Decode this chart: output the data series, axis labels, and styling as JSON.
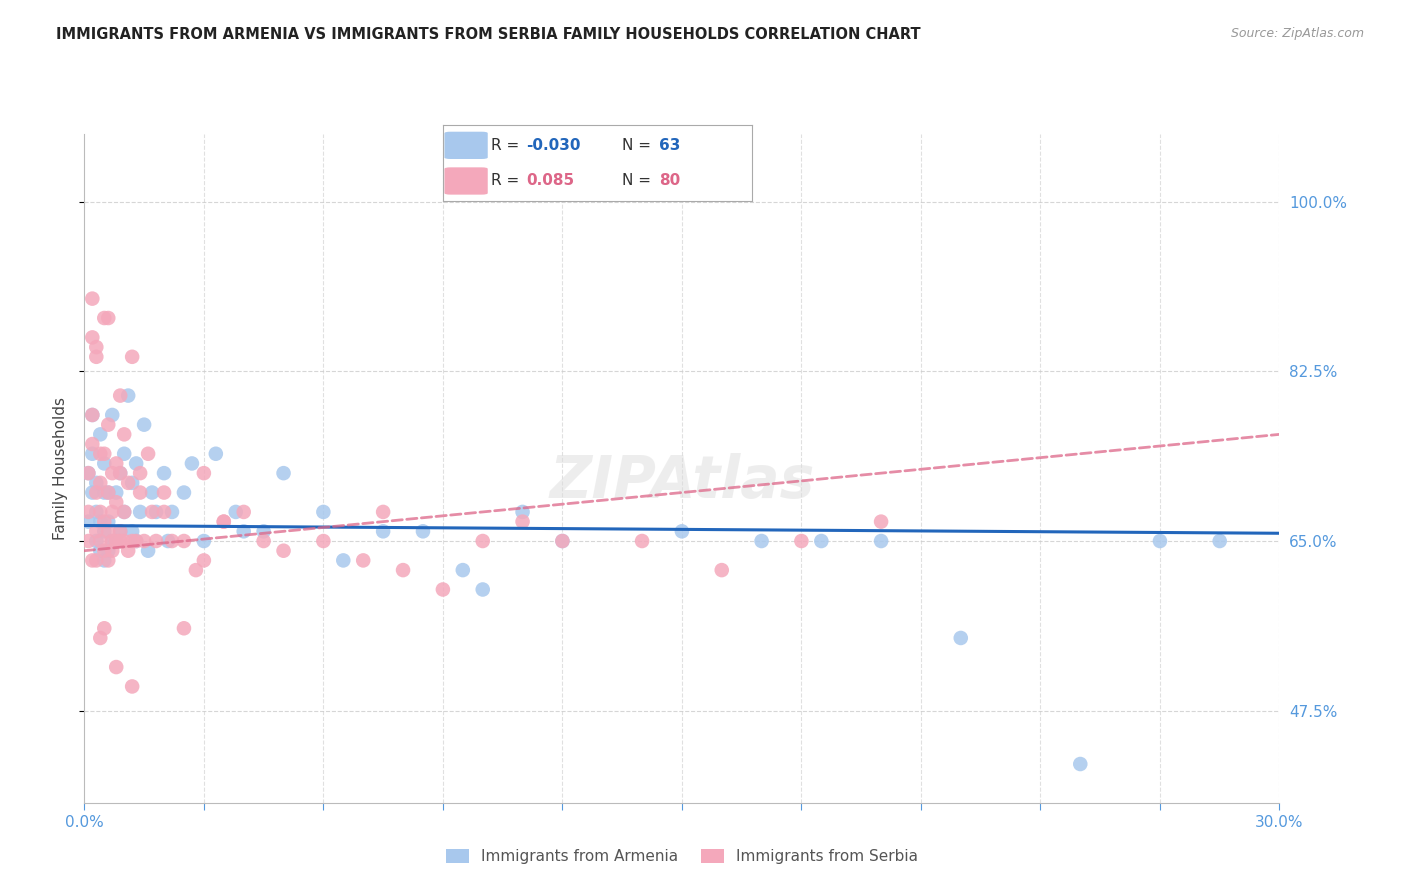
{
  "title": "IMMIGRANTS FROM ARMENIA VS IMMIGRANTS FROM SERBIA FAMILY HOUSEHOLDS CORRELATION CHART",
  "source": "Source: ZipAtlas.com",
  "ylabel_label": "Family Households",
  "yticks": [
    0.475,
    0.65,
    0.825,
    1.0
  ],
  "ytick_labels": [
    "47.5%",
    "65.0%",
    "82.5%",
    "100.0%"
  ],
  "xmin": 0.0,
  "xmax": 0.3,
  "ymin": 0.38,
  "ymax": 1.07,
  "armenia_R": -0.03,
  "armenia_N": 63,
  "serbia_R": 0.085,
  "serbia_N": 80,
  "armenia_color": "#A8C8ED",
  "serbia_color": "#F4A8BB",
  "armenia_line_color": "#2266BB",
  "serbia_line_color": "#DD6688",
  "background_color": "#FFFFFF",
  "grid_color": "#CCCCCC",
  "title_color": "#222222",
  "axis_label_color": "#5599DD",
  "legend_label1": "Immigrants from Armenia",
  "legend_label2": "Immigrants from Serbia",
  "armenia_line_y0": 0.666,
  "armenia_line_y1": 0.658,
  "serbia_line_y0": 0.64,
  "serbia_line_y1": 0.76,
  "armenia_scatter_x": [
    0.001,
    0.001,
    0.002,
    0.002,
    0.002,
    0.003,
    0.003,
    0.003,
    0.004,
    0.004,
    0.004,
    0.005,
    0.005,
    0.005,
    0.005,
    0.006,
    0.006,
    0.006,
    0.007,
    0.007,
    0.008,
    0.008,
    0.009,
    0.009,
    0.01,
    0.01,
    0.011,
    0.012,
    0.012,
    0.013,
    0.013,
    0.014,
    0.015,
    0.016,
    0.017,
    0.018,
    0.02,
    0.021,
    0.022,
    0.025,
    0.027,
    0.03,
    0.033,
    0.038,
    0.04,
    0.045,
    0.05,
    0.06,
    0.065,
    0.075,
    0.085,
    0.095,
    0.1,
    0.11,
    0.12,
    0.15,
    0.17,
    0.185,
    0.2,
    0.22,
    0.25,
    0.27,
    0.285
  ],
  "armenia_scatter_y": [
    0.67,
    0.72,
    0.7,
    0.74,
    0.78,
    0.65,
    0.68,
    0.71,
    0.64,
    0.67,
    0.76,
    0.63,
    0.66,
    0.7,
    0.73,
    0.64,
    0.67,
    0.7,
    0.65,
    0.78,
    0.65,
    0.7,
    0.66,
    0.72,
    0.68,
    0.74,
    0.8,
    0.66,
    0.71,
    0.73,
    0.65,
    0.68,
    0.77,
    0.64,
    0.7,
    0.68,
    0.72,
    0.65,
    0.68,
    0.7,
    0.73,
    0.65,
    0.74,
    0.68,
    0.66,
    0.66,
    0.72,
    0.68,
    0.63,
    0.66,
    0.66,
    0.62,
    0.6,
    0.68,
    0.65,
    0.66,
    0.65,
    0.65,
    0.65,
    0.55,
    0.42,
    0.65,
    0.65
  ],
  "serbia_scatter_x": [
    0.001,
    0.001,
    0.001,
    0.002,
    0.002,
    0.002,
    0.002,
    0.003,
    0.003,
    0.003,
    0.003,
    0.004,
    0.004,
    0.004,
    0.004,
    0.005,
    0.005,
    0.005,
    0.005,
    0.006,
    0.006,
    0.006,
    0.006,
    0.007,
    0.007,
    0.007,
    0.007,
    0.008,
    0.008,
    0.008,
    0.009,
    0.009,
    0.009,
    0.01,
    0.01,
    0.01,
    0.011,
    0.011,
    0.012,
    0.012,
    0.013,
    0.014,
    0.015,
    0.016,
    0.017,
    0.018,
    0.02,
    0.022,
    0.025,
    0.028,
    0.03,
    0.035,
    0.04,
    0.045,
    0.05,
    0.06,
    0.07,
    0.075,
    0.08,
    0.09,
    0.1,
    0.11,
    0.12,
    0.14,
    0.16,
    0.18,
    0.2,
    0.03,
    0.012,
    0.008,
    0.005,
    0.004,
    0.003,
    0.002,
    0.006,
    0.009,
    0.014,
    0.025,
    0.035,
    0.02
  ],
  "serbia_scatter_y": [
    0.65,
    0.68,
    0.72,
    0.75,
    0.78,
    0.63,
    0.86,
    0.63,
    0.66,
    0.7,
    0.84,
    0.65,
    0.68,
    0.71,
    0.74,
    0.64,
    0.67,
    0.74,
    0.88,
    0.63,
    0.66,
    0.7,
    0.77,
    0.64,
    0.68,
    0.72,
    0.65,
    0.65,
    0.69,
    0.73,
    0.66,
    0.72,
    0.65,
    0.65,
    0.68,
    0.76,
    0.64,
    0.71,
    0.65,
    0.84,
    0.65,
    0.72,
    0.65,
    0.74,
    0.68,
    0.65,
    0.7,
    0.65,
    0.65,
    0.62,
    0.72,
    0.67,
    0.68,
    0.65,
    0.64,
    0.65,
    0.63,
    0.68,
    0.62,
    0.6,
    0.65,
    0.67,
    0.65,
    0.65,
    0.62,
    0.65,
    0.67,
    0.63,
    0.5,
    0.52,
    0.56,
    0.55,
    0.85,
    0.9,
    0.88,
    0.8,
    0.7,
    0.56,
    0.67,
    0.68
  ]
}
